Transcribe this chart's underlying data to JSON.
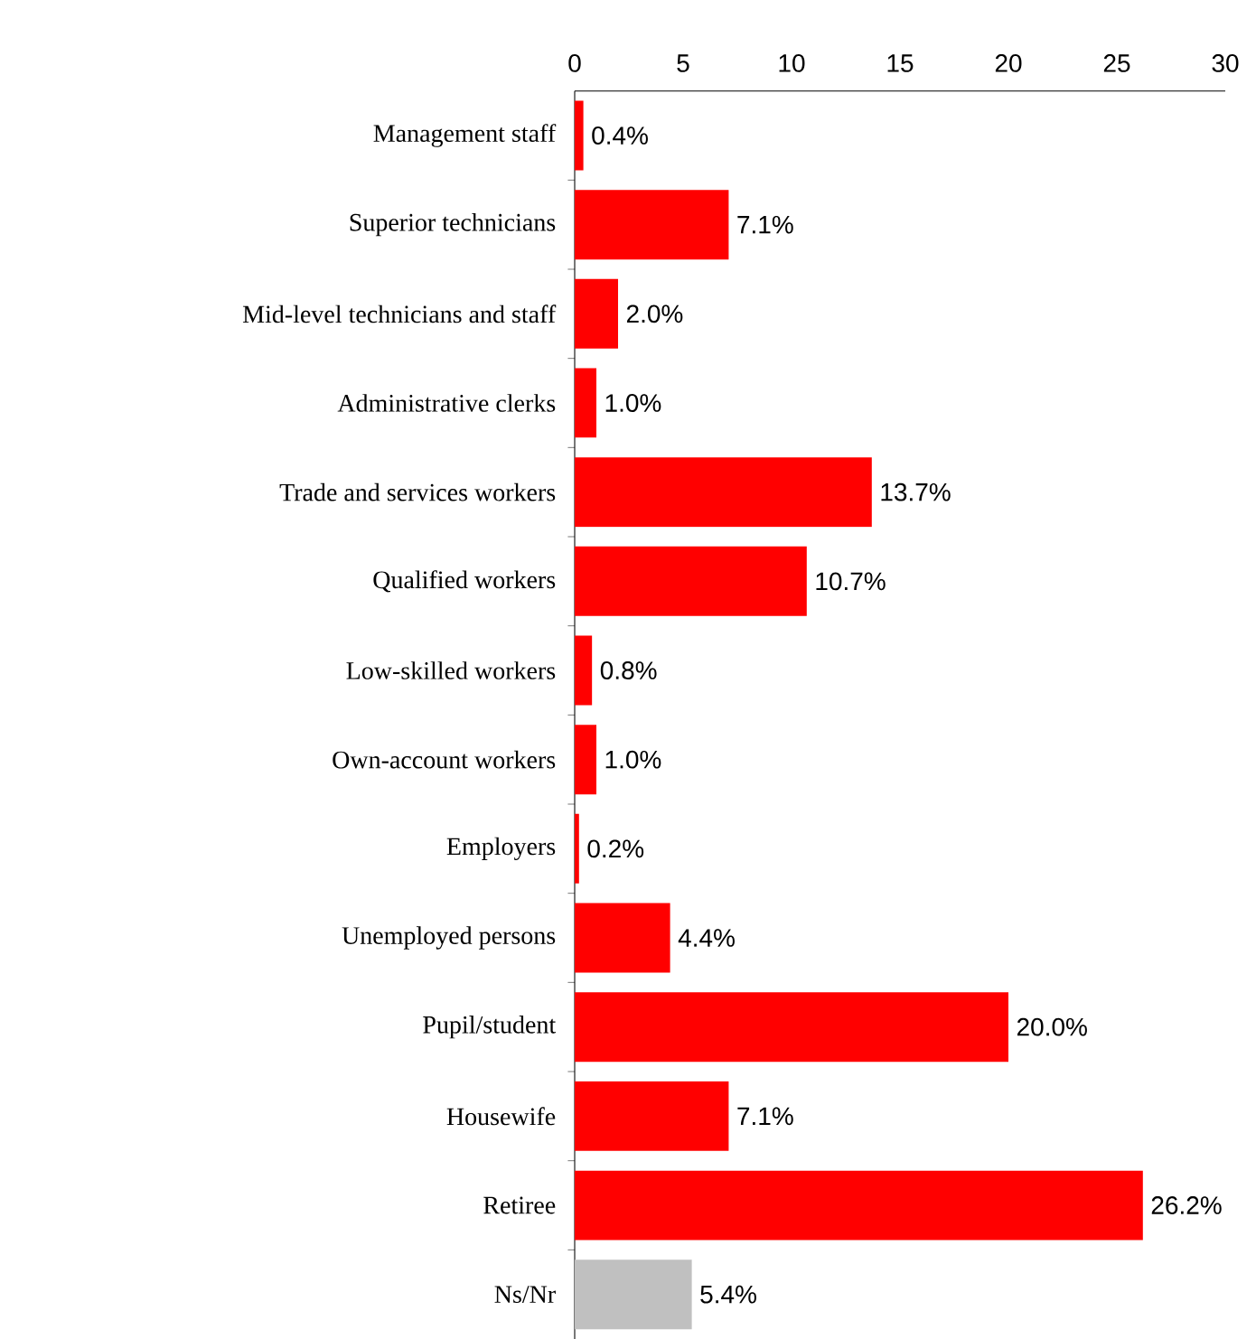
{
  "chart_data": {
    "type": "bar",
    "orientation": "horizontal",
    "categories": [
      "Management staff",
      "Superior technicians",
      "Mid-level technicians and staff",
      "Administrative clerks",
      "Trade and services workers",
      "Qualified workers",
      "Low-skilled workers",
      "Own-account workers",
      "Employers",
      "Unemployed persons",
      "Pupil/student",
      "Housewife",
      "Retiree",
      "Ns/Nr"
    ],
    "values": [
      0.4,
      7.1,
      2.0,
      1.0,
      13.7,
      10.7,
      0.8,
      1.0,
      0.2,
      4.4,
      20.0,
      7.1,
      26.2,
      5.4
    ],
    "value_labels": [
      "0.4%",
      "7.1%",
      "2.0%",
      "1.0%",
      "13.7%",
      "10.7%",
      "0.8%",
      "1.0%",
      "0.2%",
      "4.4%",
      "20.0%",
      "7.1%",
      "26.2%",
      "5.4%"
    ],
    "colors": [
      "#ff0000",
      "#ff0000",
      "#ff0000",
      "#ff0000",
      "#ff0000",
      "#ff0000",
      "#ff0000",
      "#ff0000",
      "#ff0000",
      "#ff0000",
      "#ff0000",
      "#ff0000",
      "#ff0000",
      "#c0c0c0"
    ],
    "xlim": [
      0,
      30
    ],
    "xticks": [
      0,
      5,
      10,
      15,
      20,
      25,
      30
    ],
    "grid": false
  }
}
